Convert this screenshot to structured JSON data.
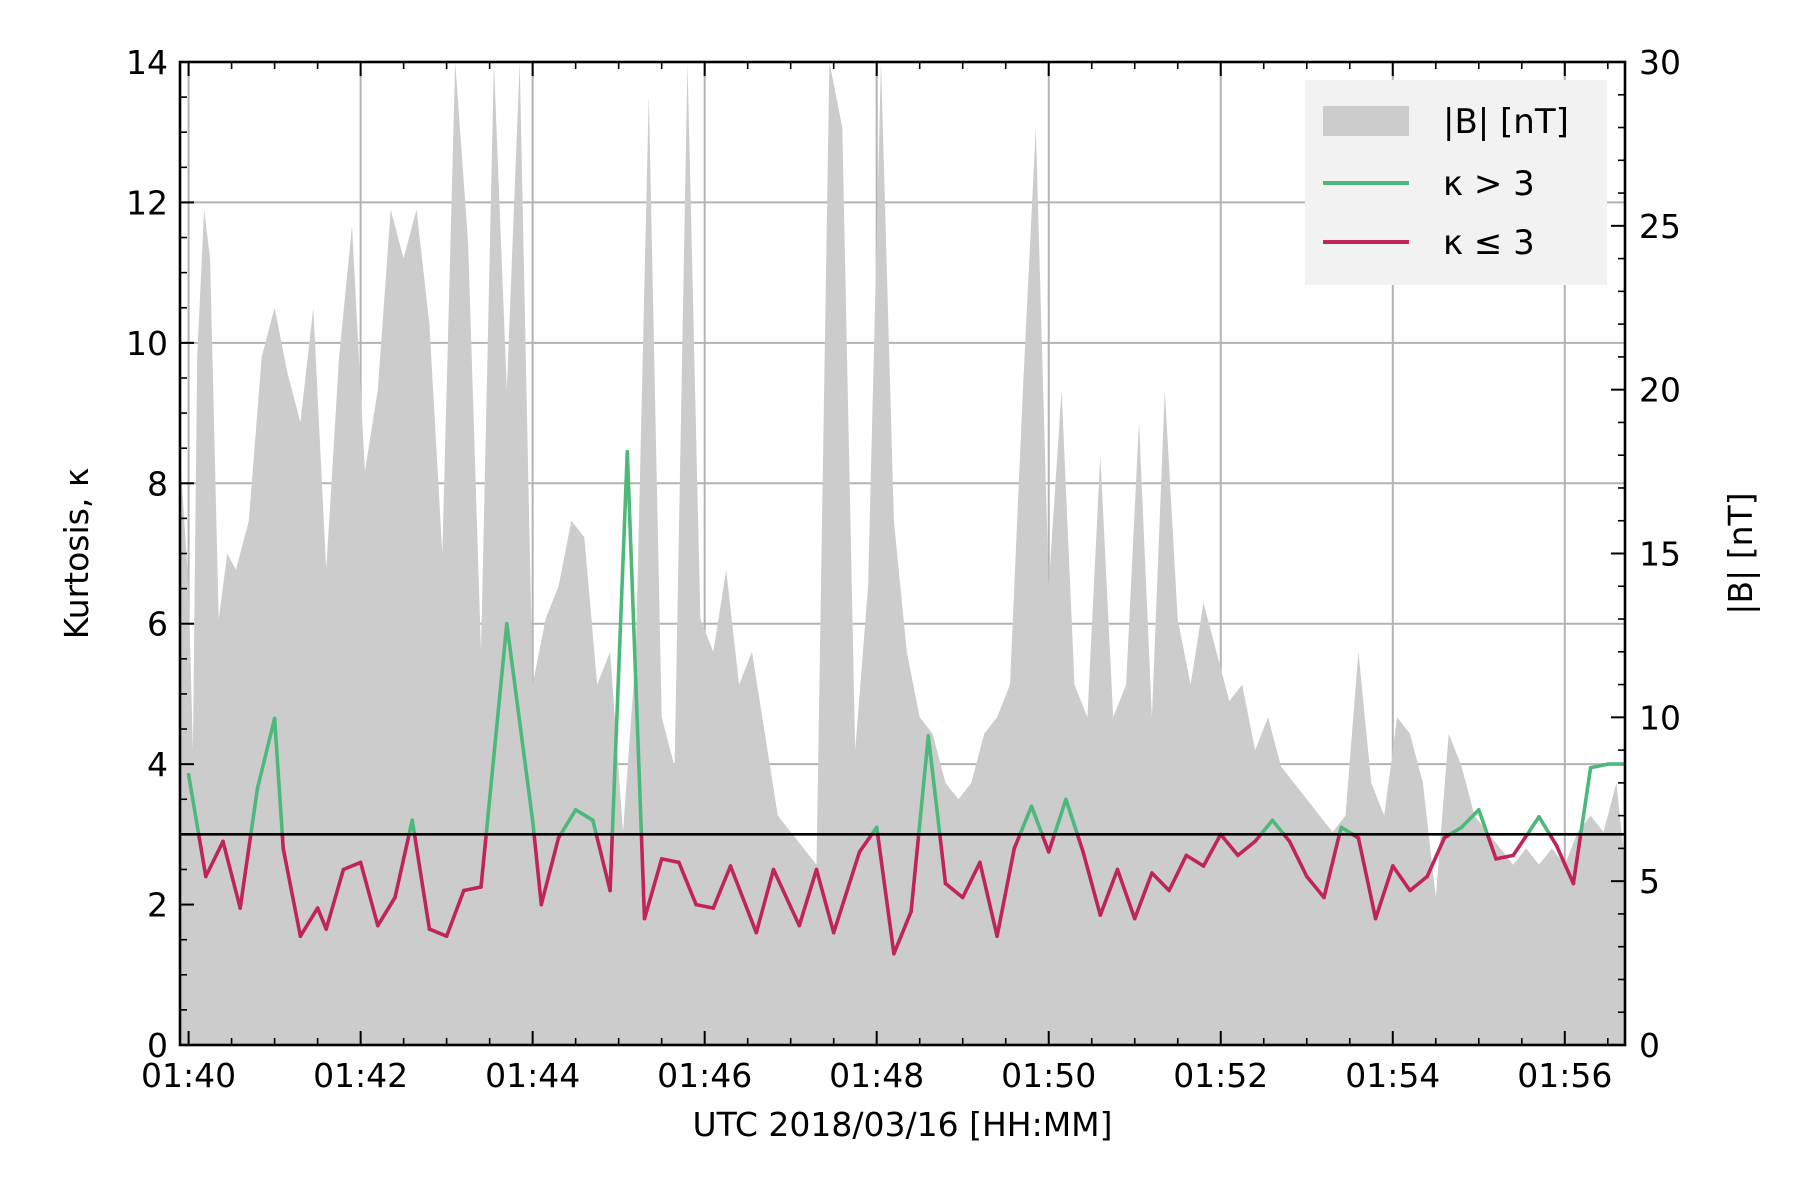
{
  "chart_data": {
    "type": "line",
    "xlabel": "UTC 2018/03/16 [HH:MM]",
    "ylabel_left": "Kurtosis, κ",
    "ylabel_right": "|B| [nT]",
    "x_ticks": [
      "01:40",
      "01:42",
      "01:44",
      "01:46",
      "01:48",
      "01:50",
      "01:52",
      "01:54",
      "01:56"
    ],
    "y_left_ticks": [
      "0",
      "2",
      "4",
      "6",
      "8",
      "10",
      "12",
      "14"
    ],
    "y_right_ticks": [
      "0",
      "5",
      "10",
      "15",
      "20",
      "25",
      "30"
    ],
    "xlim_minutes_after_0140": [
      -0.1,
      16.7
    ],
    "ylim_left": [
      0,
      14
    ],
    "ylim_right": [
      0,
      30
    ],
    "threshold_kappa": 3,
    "grid": true,
    "legend": {
      "placement": "top-right",
      "entries": [
        "|B| [nT]",
        "κ > 3",
        "κ ≤ 3"
      ]
    },
    "colors": {
      "area": "#cccccc",
      "high": "#4cb97a",
      "low": "#c0245a",
      "threshold": "#000000",
      "grid": "#b3b3b3"
    },
    "kurtosis_series": {
      "name": "κ",
      "x_minutes_after_0140": [
        0,
        0.2,
        0.4,
        0.6,
        0.8,
        1.0,
        1.1,
        1.3,
        1.5,
        1.6,
        1.8,
        2.0,
        2.2,
        2.4,
        2.6,
        2.8,
        3.0,
        3.2,
        3.4,
        3.7,
        4.0,
        4.1,
        4.3,
        4.5,
        4.7,
        4.9,
        5.1,
        5.3,
        5.5,
        5.7,
        5.9,
        6.1,
        6.3,
        6.6,
        6.8,
        7.1,
        7.3,
        7.5,
        7.8,
        8.0,
        8.2,
        8.4,
        8.6,
        8.8,
        9.0,
        9.2,
        9.4,
        9.6,
        9.8,
        10.0,
        10.2,
        10.4,
        10.6,
        10.8,
        11.0,
        11.2,
        11.4,
        11.6,
        11.8,
        12.0,
        12.2,
        12.4,
        12.6,
        12.8,
        13.0,
        13.2,
        13.4,
        13.6,
        13.8,
        14.0,
        14.2,
        14.4,
        14.6,
        14.8,
        15.0,
        15.2,
        15.4,
        15.7,
        15.9,
        16.1,
        16.3,
        16.5,
        16.7
      ],
      "values": [
        3.85,
        2.4,
        2.9,
        1.95,
        3.65,
        4.65,
        2.8,
        1.55,
        1.95,
        1.65,
        2.5,
        2.6,
        1.7,
        2.1,
        3.2,
        1.65,
        1.55,
        2.2,
        2.25,
        6.0,
        3.2,
        2.0,
        2.95,
        3.35,
        3.2,
        2.2,
        8.45,
        1.8,
        2.65,
        2.6,
        2.0,
        1.95,
        2.55,
        1.6,
        2.5,
        1.7,
        2.5,
        1.6,
        2.75,
        3.1,
        1.3,
        1.9,
        4.4,
        2.3,
        2.1,
        2.6,
        1.55,
        2.8,
        3.4,
        2.75,
        3.5,
        2.75,
        1.85,
        2.5,
        1.8,
        2.45,
        2.2,
        2.7,
        2.55,
        3.0,
        2.7,
        2.9,
        3.2,
        2.9,
        2.4,
        2.1,
        3.1,
        2.95,
        1.8,
        2.55,
        2.2,
        2.4,
        2.95,
        3.1,
        3.35,
        2.65,
        2.7,
        3.25,
        2.85,
        2.3,
        3.95,
        4.0,
        4.0
      ]
    },
    "field_magnitude_series": {
      "name": "|B| [nT]",
      "x_minutes_after_0140": [
        -0.1,
        0.0,
        0.05,
        0.1,
        0.18,
        0.25,
        0.35,
        0.45,
        0.55,
        0.7,
        0.85,
        1.0,
        1.15,
        1.3,
        1.45,
        1.6,
        1.75,
        1.9,
        2.05,
        2.2,
        2.35,
        2.5,
        2.65,
        2.8,
        2.95,
        3.1,
        3.25,
        3.4,
        3.55,
        3.7,
        3.85,
        4.0,
        4.15,
        4.3,
        4.45,
        4.6,
        4.75,
        4.9,
        5.05,
        5.2,
        5.35,
        5.5,
        5.65,
        5.8,
        5.95,
        6.1,
        6.25,
        6.4,
        6.55,
        6.7,
        6.85,
        7.0,
        7.15,
        7.3,
        7.45,
        7.6,
        7.75,
        7.9,
        8.05,
        8.2,
        8.35,
        8.5,
        8.65,
        8.8,
        8.95,
        9.1,
        9.25,
        9.4,
        9.55,
        9.7,
        9.85,
        10.0,
        10.15,
        10.3,
        10.45,
        10.6,
        10.75,
        10.9,
        11.05,
        11.2,
        11.35,
        11.5,
        11.65,
        11.8,
        11.95,
        12.1,
        12.25,
        12.4,
        12.55,
        12.7,
        12.85,
        13.0,
        13.15,
        13.3,
        13.45,
        13.6,
        13.75,
        13.9,
        14.05,
        14.2,
        14.35,
        14.5,
        14.65,
        14.8,
        14.95,
        15.1,
        15.25,
        15.4,
        15.55,
        15.7,
        15.85,
        16.0,
        16.15,
        16.3,
        16.45,
        16.6,
        16.7
      ],
      "values": [
        18,
        14,
        9,
        21,
        25.5,
        24,
        13,
        15,
        14.5,
        16,
        21,
        22.5,
        20.5,
        19,
        22.5,
        14.5,
        21,
        25,
        17.5,
        20,
        25.5,
        24,
        25.5,
        22,
        15,
        30,
        24.5,
        12,
        30,
        20,
        30,
        11,
        13,
        14,
        16,
        15.5,
        11,
        12,
        6.5,
        12,
        29,
        10,
        8.5,
        30,
        13,
        12,
        14.5,
        11,
        12,
        9.5,
        7,
        6.5,
        6,
        5.5,
        30,
        28,
        9,
        14,
        30,
        16,
        12,
        10,
        9.5,
        8,
        7.5,
        8,
        9.5,
        10,
        11,
        20,
        28,
        14,
        20,
        11,
        10,
        18,
        10,
        11,
        19,
        10,
        20,
        13,
        11,
        13.5,
        12,
        10.5,
        11,
        9,
        10,
        8.5,
        8,
        7.5,
        7,
        6.5,
        7,
        12,
        8,
        7,
        10,
        9.5,
        8,
        4.5,
        9.5,
        8.5,
        7,
        6.5,
        6,
        5.5,
        6,
        5.5,
        6,
        5.5,
        6.5,
        7,
        6.5,
        8,
        5.5,
        5
      ]
    }
  }
}
